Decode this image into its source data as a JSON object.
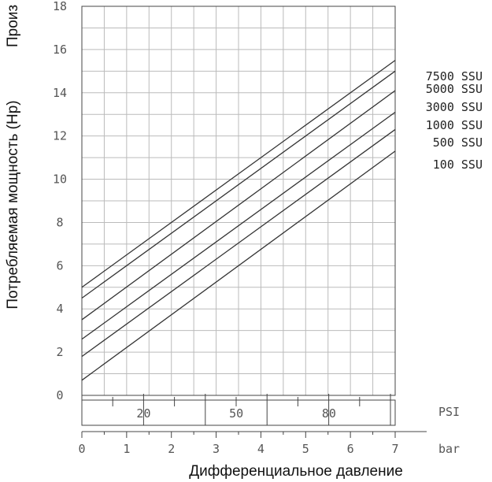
{
  "chart_data": {
    "type": "line",
    "title": "",
    "ylabel": "Потребляемая мощность (Hp)",
    "ylabel_clipped": "Произ",
    "xlabel": "Дифференциальное давление",
    "x_unit": "bar",
    "secondary_x_unit": "PSI",
    "xlim": [
      0,
      7
    ],
    "ylim": [
      0,
      18
    ],
    "grid": true,
    "y_ticks": [
      0,
      2,
      4,
      6,
      8,
      10,
      12,
      14,
      16,
      18
    ],
    "x_ticks": [
      0,
      1,
      2,
      3,
      4,
      5,
      6,
      7
    ],
    "psi_labels": [
      {
        "value": 20,
        "bar": 1.38
      },
      {
        "value": 50,
        "bar": 3.45
      },
      {
        "value": 80,
        "bar": 5.52
      }
    ],
    "series": [
      {
        "name": "7500 SSU",
        "x": [
          0,
          7
        ],
        "y": [
          5.0,
          15.5
        ]
      },
      {
        "name": "5000 SSU",
        "x": [
          0,
          7
        ],
        "y": [
          4.5,
          15.0
        ]
      },
      {
        "name": "3000 SSU",
        "x": [
          0,
          7
        ],
        "y": [
          3.5,
          14.1
        ]
      },
      {
        "name": "1000 SSU",
        "x": [
          0,
          7
        ],
        "y": [
          2.6,
          13.1
        ]
      },
      {
        "name": "500 SSU",
        "x": [
          0,
          7
        ],
        "y": [
          1.8,
          12.3
        ]
      },
      {
        "name": "100 SSU",
        "x": [
          0,
          7
        ],
        "y": [
          0.7,
          11.3
        ]
      }
    ]
  }
}
